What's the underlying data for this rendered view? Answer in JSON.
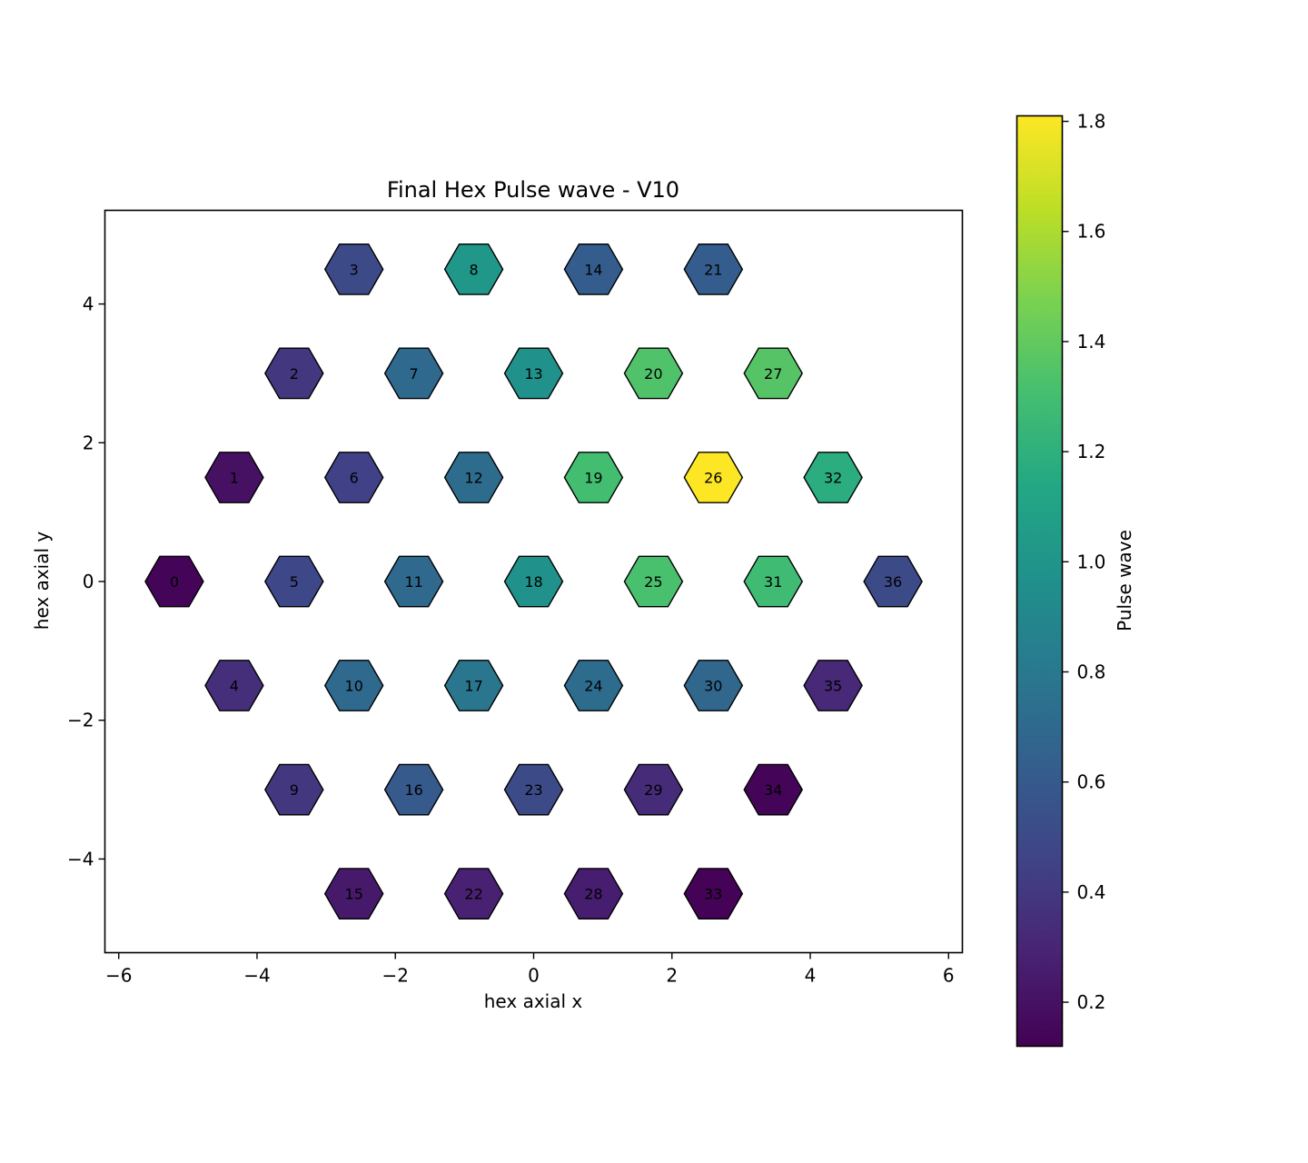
{
  "chart_data": {
    "type": "heatmap",
    "title": "Final Hex Pulse wave - V10",
    "xlabel": "hex axial x",
    "ylabel": "hex axial y",
    "colorbar_label": "Pulse wave",
    "colormap": "viridis",
    "xlim": [
      -6.2,
      6.2
    ],
    "ylim": [
      -5.35,
      5.35
    ],
    "clim": [
      0.12,
      1.81
    ],
    "xticks": [
      -6,
      -4,
      -2,
      0,
      2,
      4,
      6
    ],
    "yticks": [
      -4,
      -2,
      0,
      2,
      4
    ],
    "xtick_labels": [
      "−6",
      "−4",
      "−2",
      "0",
      "2",
      "4",
      "6"
    ],
    "ytick_labels": [
      "−4",
      "−2",
      "0",
      "2",
      "4"
    ],
    "cbar_ticks": [
      0.2,
      0.4,
      0.6,
      0.8,
      1.0,
      1.2,
      1.4,
      1.6,
      1.8
    ],
    "cbar_tick_labels": [
      "0.2",
      "0.4",
      "0.6",
      "0.8",
      "1.0",
      "1.2",
      "1.4",
      "1.6",
      "1.8"
    ],
    "cells": [
      {
        "id": "0",
        "x": -5.196,
        "y": 0.0,
        "value": 0.14
      },
      {
        "id": "1",
        "x": -4.33,
        "y": 1.5,
        "value": 0.2
      },
      {
        "id": "2",
        "x": -3.464,
        "y": 3.0,
        "value": 0.4
      },
      {
        "id": "3",
        "x": -2.598,
        "y": 4.5,
        "value": 0.5
      },
      {
        "id": "4",
        "x": -4.33,
        "y": -1.5,
        "value": 0.35
      },
      {
        "id": "5",
        "x": -3.464,
        "y": 0.0,
        "value": 0.48
      },
      {
        "id": "6",
        "x": -2.598,
        "y": 1.5,
        "value": 0.45
      },
      {
        "id": "7",
        "x": -1.732,
        "y": 3.0,
        "value": 0.7
      },
      {
        "id": "8",
        "x": -0.866,
        "y": 4.5,
        "value": 1.02
      },
      {
        "id": "9",
        "x": -3.464,
        "y": -3.0,
        "value": 0.4
      },
      {
        "id": "10",
        "x": -2.598,
        "y": -1.5,
        "value": 0.7
      },
      {
        "id": "11",
        "x": -1.732,
        "y": 0.0,
        "value": 0.7
      },
      {
        "id": "12",
        "x": -0.866,
        "y": 1.5,
        "value": 0.72
      },
      {
        "id": "13",
        "x": 0.0,
        "y": 3.0,
        "value": 0.98
      },
      {
        "id": "14",
        "x": 0.866,
        "y": 4.5,
        "value": 0.62
      },
      {
        "id": "15",
        "x": -2.598,
        "y": -4.5,
        "value": 0.24
      },
      {
        "id": "16",
        "x": -1.732,
        "y": -3.0,
        "value": 0.6
      },
      {
        "id": "17",
        "x": -0.866,
        "y": -1.5,
        "value": 0.78
      },
      {
        "id": "18",
        "x": 0.0,
        "y": 0.0,
        "value": 0.98
      },
      {
        "id": "19",
        "x": 0.866,
        "y": 1.5,
        "value": 1.3
      },
      {
        "id": "20",
        "x": 1.732,
        "y": 3.0,
        "value": 1.34
      },
      {
        "id": "21",
        "x": 2.598,
        "y": 4.5,
        "value": 0.62
      },
      {
        "id": "22",
        "x": -0.866,
        "y": -4.5,
        "value": 0.28
      },
      {
        "id": "23",
        "x": 0.0,
        "y": -3.0,
        "value": 0.5
      },
      {
        "id": "24",
        "x": 0.866,
        "y": -1.5,
        "value": 0.72
      },
      {
        "id": "25",
        "x": 1.732,
        "y": 0.0,
        "value": 1.32
      },
      {
        "id": "26",
        "x": 2.598,
        "y": 1.5,
        "value": 1.81
      },
      {
        "id": "27",
        "x": 3.464,
        "y": 3.0,
        "value": 1.36
      },
      {
        "id": "28",
        "x": 0.866,
        "y": -4.5,
        "value": 0.26
      },
      {
        "id": "29",
        "x": 1.732,
        "y": -3.0,
        "value": 0.33
      },
      {
        "id": "30",
        "x": 2.598,
        "y": -1.5,
        "value": 0.68
      },
      {
        "id": "31",
        "x": 3.464,
        "y": 0.0,
        "value": 1.28
      },
      {
        "id": "32",
        "x": 4.33,
        "y": 1.5,
        "value": 1.18
      },
      {
        "id": "33",
        "x": 2.598,
        "y": -4.5,
        "value": 0.13
      },
      {
        "id": "34",
        "x": 3.464,
        "y": -3.0,
        "value": 0.14
      },
      {
        "id": "35",
        "x": 4.33,
        "y": -1.5,
        "value": 0.32
      },
      {
        "id": "36",
        "x": 5.196,
        "y": 0.0,
        "value": 0.5
      }
    ]
  }
}
